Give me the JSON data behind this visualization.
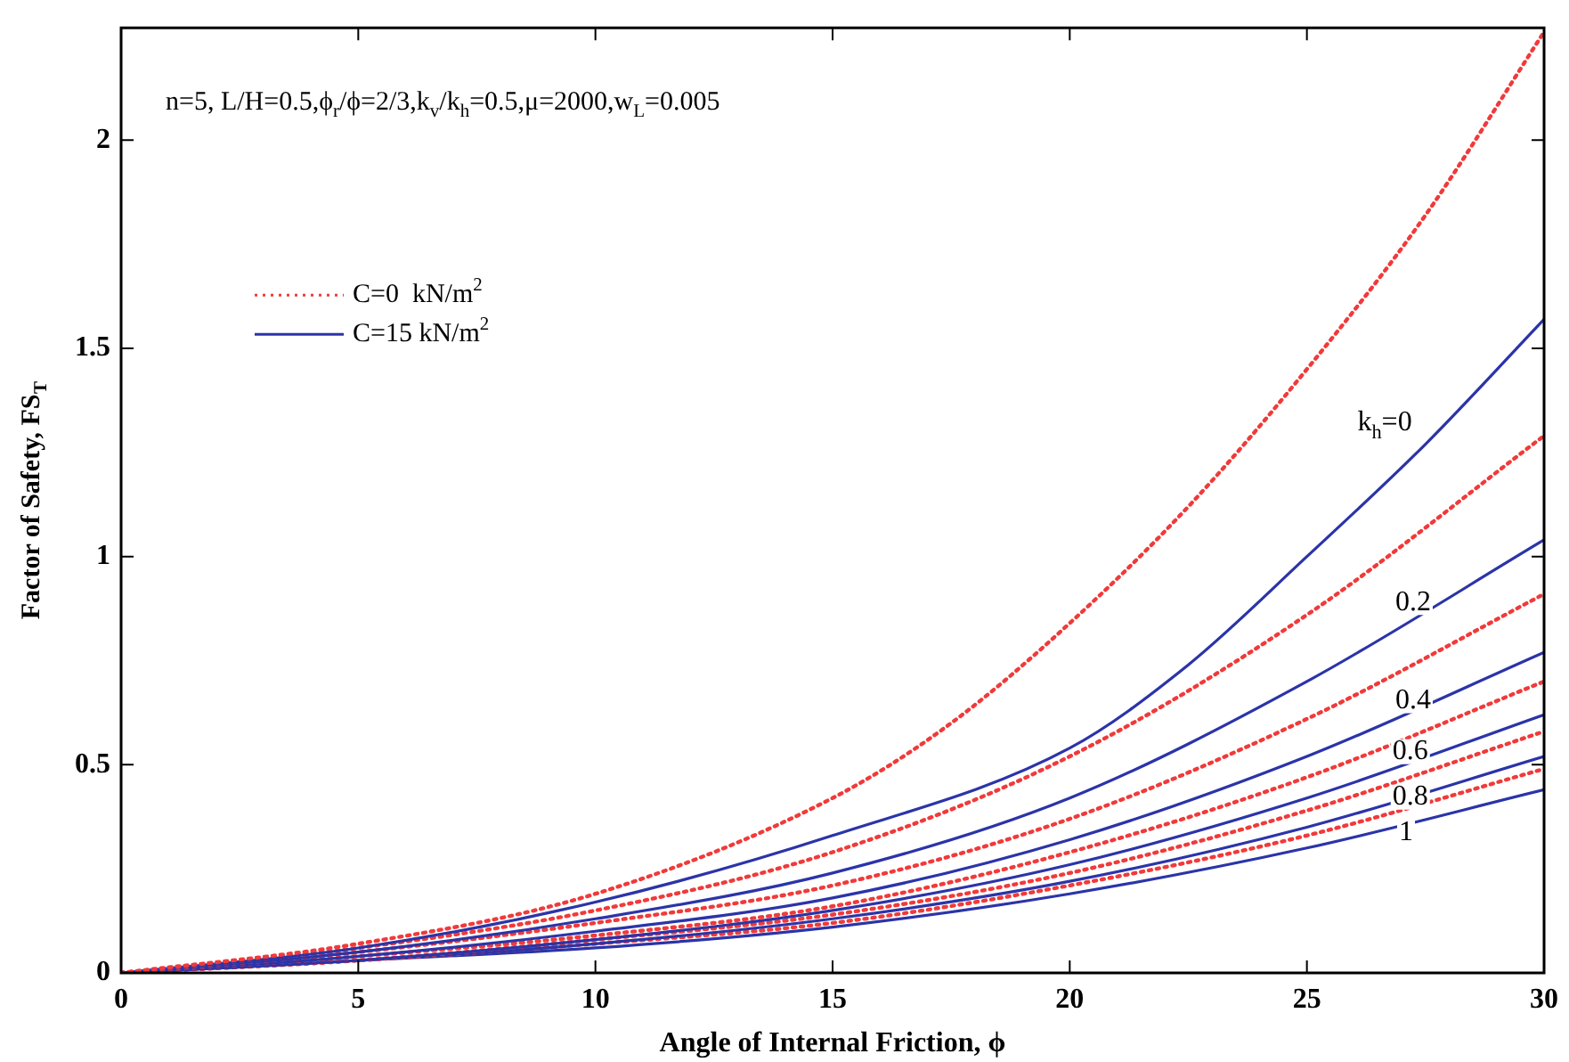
{
  "chart_data": {
    "type": "line",
    "xlabel": "Angle of Internal Friction, ϕ",
    "ylabel": "Factor of Safety, FS$_{T}$",
    "xlim": [
      0,
      30
    ],
    "xticks": [
      0,
      5,
      10,
      15,
      20,
      25,
      30
    ],
    "ylim": [
      0,
      2.27
    ],
    "yticks": [
      0,
      0.5,
      1,
      1.5,
      2
    ],
    "grid": false,
    "legend": "top left",
    "marker": "none",
    "x": [
      0,
      5,
      10,
      15,
      20,
      25,
      30
    ],
    "series": [
      {
        "name": "C=0  kN/m$^{2}$",
        "color": "#f03a3a",
        "line_style": "dotted",
        "x": [
          0,
          5,
          10,
          15,
          17.5,
          20,
          22.5,
          25,
          27.5,
          30
        ],
        "values": [
          0,
          0.07,
          0.19,
          0.42,
          0.6,
          0.84,
          1.12,
          1.45,
          1.82,
          2.26
        ]
      },
      {
        "name": "C=15 kN/m$^{2}$",
        "color": "#2b34a8",
        "line_style": "solid",
        "x": [
          0,
          5,
          10,
          15,
          20,
          22.5,
          25,
          27.5,
          30
        ],
        "values": [
          0,
          0.06,
          0.17,
          0.33,
          0.54,
          0.74,
          1.0,
          1.27,
          1.57
        ]
      },
      {
        "color": "#f03a3a",
        "line_style": "dotted",
        "values": [
          0,
          0.06,
          0.15,
          0.29,
          0.52,
          0.86,
          1.29
        ]
      },
      {
        "color": "#2b34a8",
        "line_style": "solid",
        "values": [
          0,
          0.05,
          0.13,
          0.24,
          0.42,
          0.7,
          1.04
        ]
      },
      {
        "color": "#f03a3a",
        "line_style": "dotted",
        "values": [
          0,
          0.05,
          0.12,
          0.21,
          0.37,
          0.61,
          0.91
        ]
      },
      {
        "color": "#2b34a8",
        "line_style": "solid",
        "values": [
          0,
          0.04,
          0.1,
          0.18,
          0.32,
          0.52,
          0.77
        ]
      },
      {
        "color": "#f03a3a",
        "line_style": "dotted",
        "values": [
          0,
          0.04,
          0.09,
          0.16,
          0.29,
          0.47,
          0.7
        ]
      },
      {
        "color": "#2b34a8",
        "line_style": "solid",
        "values": [
          0,
          0.03,
          0.08,
          0.15,
          0.26,
          0.42,
          0.62
        ]
      },
      {
        "color": "#f03a3a",
        "line_style": "dotted",
        "values": [
          0,
          0.03,
          0.08,
          0.14,
          0.24,
          0.39,
          0.58
        ]
      },
      {
        "color": "#2b34a8",
        "line_style": "solid",
        "values": [
          0,
          0.03,
          0.07,
          0.13,
          0.22,
          0.35,
          0.52
        ]
      },
      {
        "color": "#f03a3a",
        "line_style": "dotted",
        "values": [
          0,
          0.03,
          0.07,
          0.12,
          0.21,
          0.33,
          0.49
        ]
      },
      {
        "color": "#2b34a8",
        "line_style": "solid",
        "values": [
          0,
          0.03,
          0.06,
          0.11,
          0.19,
          0.3,
          0.44
        ]
      }
    ],
    "annotations": [
      "n=5, L/H=0.5,ϕ$_{r}$/ϕ=2/3,k$_{v}$/k$_{h}$=0.5,μ=2000,w$_{L}$=0.005",
      "k$_{h}$=0",
      "0.2",
      "0.4",
      "0.6",
      "0.8",
      "1"
    ]
  }
}
